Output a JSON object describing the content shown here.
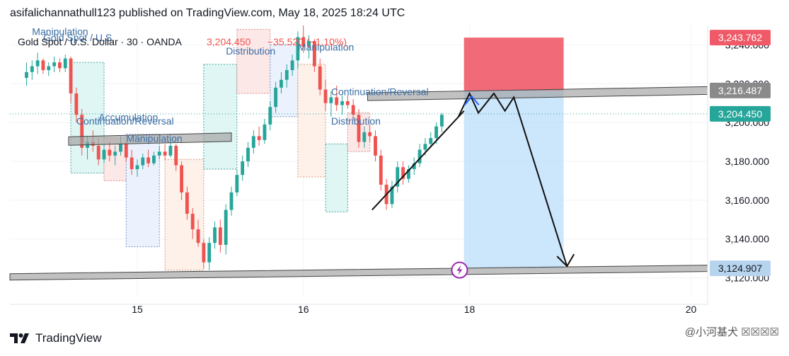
{
  "header": {
    "publisher_line": "asifalichannathull123 published on TradingView.com, May 18, 2025 18:24 UTC"
  },
  "symbol_bar": {
    "name": "Gold Spot / U.S. Dollar · 30 · OANDA",
    "price": "3,204.450",
    "change": "−35.520 (−1.10%)"
  },
  "footer": {
    "brand": "TradingView",
    "watermark": "@小河基犬 ☒☒☒☒"
  },
  "colors": {
    "up": "#26a69a",
    "down": "#ef5350",
    "price_line": "#26a69a",
    "target_zone": "#bbdefb",
    "stop_zone": "#f05a68",
    "gray_line": "#9e9e9e",
    "label_blue": "#3a6ea5"
  },
  "chart_data": {
    "type": "candlestick",
    "title": "",
    "ylim": [
      3110,
      3250
    ],
    "y_ticks": [
      {
        "value": 3240,
        "label": "3,240.000"
      },
      {
        "value": 3220,
        "label": "3,220.000"
      },
      {
        "value": 3200,
        "label": "3,200.000"
      },
      {
        "value": 3180,
        "label": "3,180.000"
      },
      {
        "value": 3160,
        "label": "3,160.000"
      },
      {
        "value": 3140,
        "label": "3,140.000"
      },
      {
        "value": 3120,
        "label": "3,120.000"
      }
    ],
    "x_ticks": [
      {
        "value": 14.0,
        "label": "15"
      },
      {
        "value": 15.5,
        "label": "16"
      },
      {
        "value": 17.0,
        "label": "18"
      },
      {
        "value": 19.0,
        "label": "20"
      }
    ],
    "price_labels": [
      {
        "value": 3243.762,
        "label": "3,243.762",
        "color": "#f05a68"
      },
      {
        "value": 3216.487,
        "label": "3,216.487",
        "color": "#8a8a8a"
      },
      {
        "value": 3204.45,
        "label": "3,204.450",
        "color": "#26a69a"
      },
      {
        "value": 3124.907,
        "label": "3,124.907",
        "color": "#b7d4ee"
      }
    ],
    "candles": [
      [
        13.0,
        3223,
        3231,
        3219,
        3226
      ],
      [
        13.05,
        3226,
        3232,
        3222,
        3229
      ],
      [
        13.1,
        3229,
        3236,
        3225,
        3232
      ],
      [
        13.15,
        3232,
        3233,
        3225,
        3227
      ],
      [
        13.2,
        3227,
        3231,
        3224,
        3229
      ],
      [
        13.25,
        3229,
        3234,
        3226,
        3231
      ],
      [
        13.3,
        3231,
        3233,
        3226,
        3228
      ],
      [
        13.35,
        3228,
        3235,
        3226,
        3233
      ],
      [
        13.4,
        3233,
        3234,
        3210,
        3215
      ],
      [
        13.45,
        3215,
        3218,
        3200,
        3204
      ],
      [
        13.5,
        3204,
        3207,
        3183,
        3187
      ],
      [
        13.55,
        3187,
        3193,
        3181,
        3190
      ],
      [
        13.6,
        3190,
        3196,
        3185,
        3188
      ],
      [
        13.65,
        3188,
        3192,
        3178,
        3181
      ],
      [
        13.7,
        3181,
        3189,
        3179,
        3186
      ],
      [
        13.75,
        3186,
        3190,
        3180,
        3183
      ],
      [
        13.8,
        3183,
        3188,
        3178,
        3185
      ],
      [
        13.85,
        3185,
        3193,
        3183,
        3189
      ],
      [
        13.9,
        3189,
        3190,
        3180,
        3182
      ],
      [
        13.95,
        3182,
        3186,
        3173,
        3176
      ],
      [
        14.0,
        3176,
        3181,
        3172,
        3178
      ],
      [
        14.05,
        3178,
        3184,
        3176,
        3182
      ],
      [
        14.1,
        3182,
        3186,
        3177,
        3179
      ],
      [
        14.15,
        3179,
        3185,
        3178,
        3183
      ],
      [
        14.2,
        3183,
        3188,
        3181,
        3185
      ],
      [
        14.25,
        3185,
        3189,
        3181,
        3183
      ],
      [
        14.3,
        3183,
        3190,
        3182,
        3188
      ],
      [
        14.35,
        3188,
        3189,
        3175,
        3178
      ],
      [
        14.4,
        3178,
        3180,
        3160,
        3164
      ],
      [
        14.45,
        3164,
        3167,
        3150,
        3153
      ],
      [
        14.5,
        3153,
        3156,
        3140,
        3145
      ],
      [
        14.55,
        3145,
        3150,
        3136,
        3138
      ],
      [
        14.6,
        3138,
        3140,
        3125,
        3128
      ],
      [
        14.65,
        3128,
        3141,
        3124,
        3138
      ],
      [
        14.7,
        3138,
        3149,
        3135,
        3146
      ],
      [
        14.75,
        3146,
        3150,
        3133,
        3137
      ],
      [
        14.8,
        3137,
        3158,
        3132,
        3155
      ],
      [
        14.85,
        3155,
        3167,
        3152,
        3164
      ],
      [
        14.9,
        3164,
        3176,
        3162,
        3173
      ],
      [
        14.95,
        3173,
        3183,
        3170,
        3180
      ],
      [
        15.0,
        3180,
        3190,
        3177,
        3187
      ],
      [
        15.05,
        3187,
        3196,
        3184,
        3193
      ],
      [
        15.1,
        3193,
        3198,
        3188,
        3191
      ],
      [
        15.15,
        3191,
        3202,
        3189,
        3199
      ],
      [
        15.2,
        3199,
        3211,
        3196,
        3208
      ],
      [
        15.25,
        3208,
        3221,
        3205,
        3218
      ],
      [
        15.3,
        3218,
        3226,
        3215,
        3222
      ],
      [
        15.35,
        3222,
        3230,
        3218,
        3227
      ],
      [
        15.4,
        3227,
        3235,
        3224,
        3232
      ],
      [
        15.45,
        3232,
        3247,
        3228,
        3244
      ],
      [
        15.5,
        3244,
        3250,
        3236,
        3239
      ],
      [
        15.55,
        3239,
        3245,
        3233,
        3242
      ],
      [
        15.6,
        3242,
        3243,
        3226,
        3229
      ],
      [
        15.65,
        3229,
        3233,
        3214,
        3217
      ],
      [
        15.7,
        3217,
        3222,
        3206,
        3210
      ],
      [
        15.75,
        3210,
        3216,
        3203,
        3213
      ],
      [
        15.8,
        3213,
        3219,
        3206,
        3209
      ],
      [
        15.85,
        3209,
        3214,
        3204,
        3211
      ],
      [
        15.9,
        3211,
        3214,
        3207,
        3209
      ],
      [
        15.95,
        3209,
        3212,
        3201,
        3204
      ],
      [
        16.0,
        3204,
        3207,
        3187,
        3190
      ],
      [
        16.05,
        3190,
        3198,
        3187,
        3195
      ],
      [
        16.1,
        3195,
        3199,
        3190,
        3193
      ],
      [
        16.15,
        3193,
        3196,
        3180,
        3183
      ],
      [
        16.2,
        3183,
        3186,
        3165,
        3168
      ],
      [
        16.25,
        3168,
        3171,
        3155,
        3158
      ],
      [
        16.3,
        3158,
        3170,
        3156,
        3167
      ],
      [
        16.35,
        3167,
        3180,
        3164,
        3177
      ],
      [
        16.4,
        3177,
        3180,
        3168,
        3171
      ],
      [
        16.45,
        3171,
        3178,
        3169,
        3176
      ],
      [
        16.5,
        3176,
        3182,
        3173,
        3179
      ],
      [
        16.55,
        3179,
        3189,
        3177,
        3186
      ],
      [
        16.6,
        3186,
        3192,
        3183,
        3189
      ],
      [
        16.65,
        3189,
        3195,
        3187,
        3192
      ],
      [
        16.7,
        3192,
        3200,
        3189,
        3198
      ],
      [
        16.75,
        3198,
        3205,
        3195,
        3204
      ]
    ],
    "zones": [
      {
        "x0": 13.4,
        "x1": 13.7,
        "y0": 3174,
        "y1": 3231,
        "fill": "#d9f4f2",
        "stroke": "#4aa3a0"
      },
      {
        "x0": 13.7,
        "x1": 13.9,
        "y0": 3170,
        "y1": 3192,
        "fill": "#fde4e4",
        "stroke": "#d88c8c"
      },
      {
        "x0": 13.9,
        "x1": 14.2,
        "y0": 3136,
        "y1": 3194,
        "fill": "#e8f0fd",
        "stroke": "#7a8fc0"
      },
      {
        "x0": 14.25,
        "x1": 14.6,
        "y0": 3124,
        "y1": 3181,
        "fill": "#fdeee6",
        "stroke": "#d89a7a"
      },
      {
        "x0": 14.6,
        "x1": 14.9,
        "y0": 3176,
        "y1": 3230,
        "fill": "#d9f4f2",
        "stroke": "#4aa3a0"
      },
      {
        "x0": 14.9,
        "x1": 15.2,
        "y0": 3215,
        "y1": 3248,
        "fill": "#fde4e4",
        "stroke": "#d88c8c"
      },
      {
        "x0": 15.2,
        "x1": 15.45,
        "y0": 3203,
        "y1": 3240,
        "fill": "#e8f0fd",
        "stroke": "#7a8fc0"
      },
      {
        "x0": 15.45,
        "x1": 15.7,
        "y0": 3172,
        "y1": 3230,
        "fill": "#fdeee6",
        "stroke": "#d89a7a"
      },
      {
        "x0": 15.7,
        "x1": 15.9,
        "y0": 3154,
        "y1": 3189,
        "fill": "#d9f4f2",
        "stroke": "#4aa3a0"
      },
      {
        "x0": 15.9,
        "x1": 16.1,
        "y0": 3185,
        "y1": 3205,
        "fill": "#fde4e4",
        "stroke": "#d88c8c"
      }
    ],
    "labels": [
      {
        "text": "Manipulation",
        "x": 13.05,
        "y": 3245
      },
      {
        "text": "Gold Spot / U.S.",
        "x": 13.15,
        "y": 3242
      },
      {
        "text": "Continuation/Reversal",
        "x": 13.45,
        "y": 3199
      },
      {
        "text": "Accumulation",
        "x": 13.65,
        "y": 3201
      },
      {
        "text": "Manipulation",
        "x": 13.9,
        "y": 3190
      },
      {
        "text": "Distribution",
        "x": 14.8,
        "y": 3235
      },
      {
        "text": "Manipulation",
        "x": 15.45,
        "y": 3237
      },
      {
        "text": "Continuation/Reversal",
        "x": 15.75,
        "y": 3214
      },
      {
        "text": "Distribution",
        "x": 15.75,
        "y": 3199
      }
    ]
  }
}
